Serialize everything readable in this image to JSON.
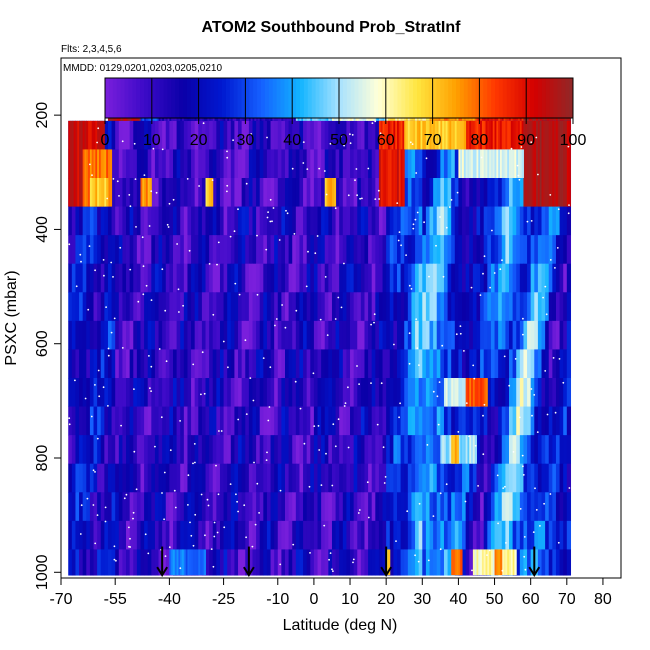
{
  "chart_data": {
    "type": "heatmap",
    "title": "ATOM2 Southbound Prob_StratInf",
    "subtitle": "Flts: 2,3,4,5,6",
    "annotation": "MMDD: 0129,0201,0203,0205,0210",
    "xlabel": "Latitude (deg N)",
    "ylabel": "PSXC (mbar)",
    "xlim": [
      -70,
      85
    ],
    "ylim": [
      1010,
      100
    ],
    "x_ticks": [
      -70,
      -55,
      -40,
      -25,
      -10,
      0,
      10,
      20,
      30,
      40,
      50,
      60,
      70,
      80
    ],
    "x_tick_labels": [
      "-70",
      "-55",
      "-40",
      "-25",
      "-10",
      "0",
      "10",
      "20",
      "30",
      "40",
      "50",
      "60",
      "70",
      "80"
    ],
    "y_ticks": [
      200,
      400,
      600,
      800,
      1000
    ],
    "y_tick_labels": [
      "200",
      "400",
      "600",
      "800",
      "1000"
    ],
    "colorbar": {
      "ticks": [
        0,
        10,
        20,
        30,
        40,
        50,
        60,
        70,
        80,
        90,
        100
      ],
      "tick_labels": [
        "0",
        "10",
        "20",
        "30",
        "40",
        "50",
        "60",
        "70",
        "80",
        "90",
        "100"
      ],
      "colors": [
        "#7a1fdc",
        "#3d0ac8",
        "#0a00a8",
        "#0018d0",
        "#1560ff",
        "#12b4ff",
        "#a8e2ff",
        "#ffffd8",
        "#ffe640",
        "#ffa000",
        "#ff3800",
        "#d40000",
        "#902828"
      ]
    },
    "data_range": {
      "lat": [
        -68,
        71
      ],
      "pressure": [
        170,
        1005
      ]
    },
    "layers": [
      {
        "p0": 170,
        "p1": 210,
        "lat0": -57,
        "lat1": 71
      },
      {
        "p0": 210,
        "p1": 260,
        "lat0": -68,
        "lat1": 71
      },
      {
        "p0": 260,
        "p1": 310,
        "lat0": -68,
        "lat1": 71
      },
      {
        "p0": 310,
        "p1": 360,
        "lat0": -68,
        "lat1": 71
      },
      {
        "p0": 360,
        "p1": 410,
        "lat0": -68,
        "lat1": 71
      },
      {
        "p0": 410,
        "p1": 460,
        "lat0": -68,
        "lat1": 71
      },
      {
        "p0": 460,
        "p1": 510,
        "lat0": -68,
        "lat1": 71
      },
      {
        "p0": 510,
        "p1": 560,
        "lat0": -68,
        "lat1": 71
      },
      {
        "p0": 560,
        "p1": 610,
        "lat0": -68,
        "lat1": 71
      },
      {
        "p0": 610,
        "p1": 660,
        "lat0": -68,
        "lat1": 71
      },
      {
        "p0": 660,
        "p1": 710,
        "lat0": -68,
        "lat1": 71
      },
      {
        "p0": 710,
        "p1": 760,
        "lat0": -68,
        "lat1": 71
      },
      {
        "p0": 760,
        "p1": 810,
        "lat0": -68,
        "lat1": 71
      },
      {
        "p0": 810,
        "p1": 860,
        "lat0": -68,
        "lat1": 71
      },
      {
        "p0": 860,
        "p1": 910,
        "lat0": -68,
        "lat1": 71
      },
      {
        "p0": 910,
        "p1": 960,
        "lat0": -68,
        "lat1": 71
      },
      {
        "p0": 960,
        "p1": 1005,
        "lat0": -68,
        "lat1": 71
      }
    ],
    "features": [
      {
        "lat0": -68,
        "lat1": -58,
        "p0": 210,
        "p1": 360,
        "value": 92
      },
      {
        "lat0": -64,
        "lat1": -56,
        "p0": 260,
        "p1": 360,
        "value": 78
      },
      {
        "lat0": -62,
        "lat1": -57,
        "p0": 310,
        "p1": 360,
        "value": 70
      },
      {
        "lat0": -57,
        "lat1": -48,
        "p0": 170,
        "p1": 210,
        "value": 95
      },
      {
        "lat0": -48,
        "lat1": -43,
        "p0": 170,
        "p1": 210,
        "value": 30
      },
      {
        "lat0": -43,
        "lat1": -5,
        "p0": 170,
        "p1": 210,
        "value": 12
      },
      {
        "lat0": -5,
        "lat1": 20,
        "p0": 170,
        "p1": 210,
        "value": 45
      },
      {
        "lat0": 5,
        "lat1": 17,
        "p0": 170,
        "p1": 210,
        "value": 56
      },
      {
        "lat0": 20,
        "lat1": 32,
        "p0": 170,
        "p1": 210,
        "value": 64
      },
      {
        "lat0": 32,
        "lat1": 45,
        "p0": 170,
        "p1": 210,
        "value": 76
      },
      {
        "lat0": 45,
        "lat1": 58,
        "p0": 170,
        "p1": 210,
        "value": 88
      },
      {
        "lat0": 58,
        "lat1": 71,
        "p0": 170,
        "p1": 210,
        "value": 96
      },
      {
        "lat0": 18,
        "lat1": 62,
        "p0": 210,
        "p1": 260,
        "value": 87
      },
      {
        "lat0": 25,
        "lat1": 42,
        "p0": 210,
        "p1": 260,
        "value": 70
      },
      {
        "lat0": 58,
        "lat1": 71,
        "p0": 210,
        "p1": 360,
        "value": 96
      },
      {
        "lat0": 18,
        "lat1": 25,
        "p0": 260,
        "p1": 360,
        "value": 90
      },
      {
        "lat0": 40,
        "lat1": 58,
        "p0": 260,
        "p1": 310,
        "value": 55
      },
      {
        "lat0": -48,
        "lat1": -45,
        "p0": 310,
        "p1": 360,
        "value": 75
      },
      {
        "lat0": -30,
        "lat1": -28,
        "p0": 310,
        "p1": 360,
        "value": 70
      },
      {
        "lat0": 3,
        "lat1": 6,
        "p0": 310,
        "p1": 360,
        "value": 72
      },
      {
        "lat0": 36,
        "lat1": 46,
        "p0": 660,
        "p1": 710,
        "value": 52
      },
      {
        "lat0": 42,
        "lat1": 48,
        "p0": 660,
        "p1": 710,
        "value": 82
      },
      {
        "lat0": 35,
        "lat1": 45,
        "p0": 760,
        "p1": 810,
        "value": 50
      },
      {
        "lat0": 38,
        "lat1": 40,
        "p0": 760,
        "p1": 810,
        "value": 74
      },
      {
        "lat0": 20,
        "lat1": 21,
        "p0": 960,
        "p1": 1005,
        "value": 68
      },
      {
        "lat0": 38,
        "lat1": 41,
        "p0": 960,
        "p1": 1005,
        "value": 80
      },
      {
        "lat0": 44,
        "lat1": 56,
        "p0": 960,
        "p1": 1005,
        "value": 60
      },
      {
        "lat0": 50,
        "lat1": 52,
        "p0": 960,
        "p1": 1005,
        "value": 76
      },
      {
        "lat0": -40,
        "lat1": -30,
        "p0": 960,
        "p1": 1005,
        "value": 35
      }
    ],
    "arrows": [
      {
        "lat": -42,
        "p0": 955,
        "p1": 1005
      },
      {
        "lat": -18,
        "p0": 955,
        "p1": 1005
      },
      {
        "lat": 20,
        "p0": 955,
        "p1": 1005
      },
      {
        "lat": 61,
        "p0": 955,
        "p1": 1005
      }
    ]
  }
}
